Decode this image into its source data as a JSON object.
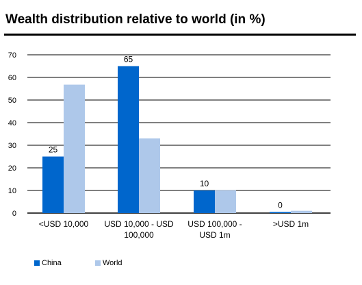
{
  "title": "Wealth distribution relative to world (in %)",
  "colors": {
    "china": "#0066cc",
    "world": "#aec8ea"
  },
  "chart_data": {
    "type": "bar",
    "categories": [
      [
        "<USD 10,000"
      ],
      [
        "USD 10,000 - USD",
        "100,000"
      ],
      [
        "USD 100,000 -",
        "USD 1m"
      ],
      [
        ">USD 1m"
      ]
    ],
    "series": [
      {
        "name": "China",
        "values": [
          25,
          65,
          10,
          0.5
        ],
        "data_labels": [
          "25",
          "65",
          "10",
          "0"
        ]
      },
      {
        "name": "World",
        "values": [
          56.8,
          33,
          10.1,
          1
        ]
      }
    ],
    "yticks": [
      "0",
      "10",
      "20",
      "30",
      "40",
      "50",
      "60",
      "70"
    ],
    "ylim": [
      0,
      70
    ],
    "grid": true,
    "legend_position": "bottom-left"
  }
}
